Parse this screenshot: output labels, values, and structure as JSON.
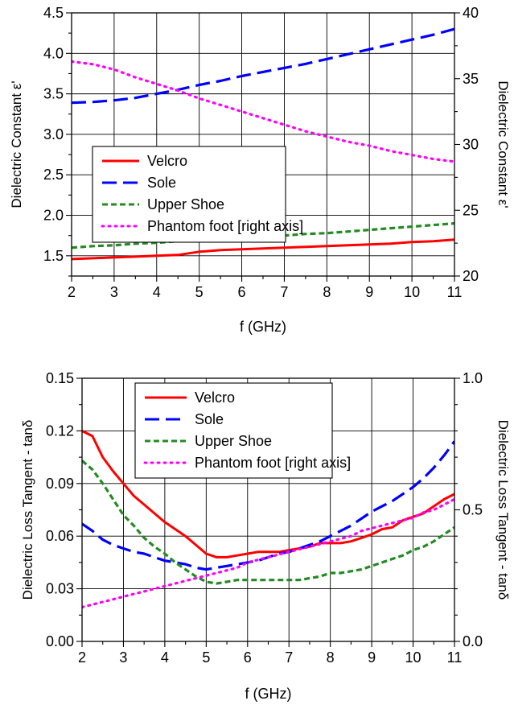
{
  "colors": {
    "velcro": "#ff0000",
    "sole": "#0000ff",
    "upper_shoe": "#228b22",
    "phantom": "#ff00ff"
  },
  "chart_data": [
    {
      "type": "line",
      "title": "",
      "xlabel": "f (GHz)",
      "ylabel": "Dielectric Constant ε'",
      "y2label": "Dielectric Constant ε'",
      "xlim": [
        2,
        11
      ],
      "ylim": [
        1.25,
        4.5
      ],
      "y2lim": [
        20,
        40
      ],
      "x_ticks": [
        "2",
        "3",
        "4",
        "5",
        "6",
        "7",
        "8",
        "9",
        "10",
        "11"
      ],
      "y_ticks": [
        "1.5",
        "2.0",
        "2.5",
        "3.0",
        "3.5",
        "4.0",
        "4.5"
      ],
      "y2_ticks": [
        "20",
        "25",
        "30",
        "35",
        "40"
      ],
      "grid": true,
      "legend_position": "middle-left",
      "x": [
        2,
        2.5,
        3,
        3.5,
        4,
        4.5,
        5,
        5.5,
        6,
        6.5,
        7,
        7.5,
        8,
        8.5,
        9,
        9.5,
        10,
        10.5,
        11
      ],
      "series": [
        {
          "name": "Velcro",
          "axis": "left",
          "style": "solid",
          "values": [
            1.46,
            1.47,
            1.48,
            1.49,
            1.5,
            1.51,
            1.55,
            1.57,
            1.58,
            1.59,
            1.6,
            1.61,
            1.62,
            1.63,
            1.64,
            1.65,
            1.67,
            1.68,
            1.7
          ]
        },
        {
          "name": "Sole",
          "axis": "left",
          "style": "dash",
          "values": [
            3.39,
            3.4,
            3.42,
            3.45,
            3.5,
            3.55,
            3.61,
            3.66,
            3.72,
            3.77,
            3.82,
            3.87,
            3.93,
            3.99,
            4.05,
            4.11,
            4.17,
            4.23,
            4.3
          ]
        },
        {
          "name": "Upper Shoe",
          "axis": "left",
          "style": "shortdash",
          "values": [
            1.6,
            1.62,
            1.63,
            1.65,
            1.66,
            1.68,
            1.7,
            1.71,
            1.72,
            1.74,
            1.75,
            1.77,
            1.78,
            1.8,
            1.82,
            1.84,
            1.86,
            1.88,
            1.9
          ]
        },
        {
          "name": "Phantom foot [right axis]",
          "axis": "right",
          "style": "dot",
          "values": [
            36.3,
            36.1,
            35.7,
            35.1,
            34.6,
            34.1,
            33.5,
            33.0,
            32.5,
            32.0,
            31.5,
            31.0,
            30.6,
            30.2,
            29.9,
            29.5,
            29.2,
            28.9,
            28.7
          ]
        }
      ]
    },
    {
      "type": "line",
      "title": "",
      "xlabel": "f (GHz)",
      "ylabel": "Dielectric Loss Tangent - tanδ",
      "y2label": "Dielectric Loss Tangent - tanδ",
      "xlim": [
        2,
        11
      ],
      "ylim": [
        0.0,
        0.15
      ],
      "y2lim": [
        0.0,
        1.0
      ],
      "x_ticks": [
        "2",
        "3",
        "4",
        "5",
        "6",
        "7",
        "8",
        "9",
        "10",
        "11"
      ],
      "y_ticks": [
        "0.00",
        "0.03",
        "0.06",
        "0.09",
        "0.12",
        "0.15"
      ],
      "y2_ticks": [
        "0.0",
        "0.5",
        "1.0"
      ],
      "grid": true,
      "legend_position": "top-center",
      "x": [
        2,
        2.25,
        2.5,
        2.75,
        3,
        3.25,
        3.5,
        3.75,
        4,
        4.25,
        4.5,
        4.75,
        5,
        5.25,
        5.5,
        5.75,
        6,
        6.25,
        6.5,
        6.75,
        7,
        7.25,
        7.5,
        7.75,
        8,
        8.25,
        8.5,
        8.75,
        9,
        9.25,
        9.5,
        9.75,
        10,
        10.25,
        10.5,
        10.75,
        11
      ],
      "series": [
        {
          "name": "Velcro",
          "axis": "left",
          "style": "solid",
          "values": [
            0.12,
            0.117,
            0.105,
            0.097,
            0.09,
            0.083,
            0.078,
            0.073,
            0.068,
            0.064,
            0.06,
            0.055,
            0.05,
            0.048,
            0.048,
            0.049,
            0.05,
            0.051,
            0.051,
            0.051,
            0.052,
            0.053,
            0.054,
            0.056,
            0.056,
            0.056,
            0.057,
            0.059,
            0.061,
            0.064,
            0.065,
            0.069,
            0.071,
            0.073,
            0.077,
            0.081,
            0.084
          ]
        },
        {
          "name": "Sole",
          "axis": "left",
          "style": "dash",
          "values": [
            0.067,
            0.063,
            0.058,
            0.055,
            0.053,
            0.051,
            0.05,
            0.048,
            0.046,
            0.045,
            0.044,
            0.042,
            0.041,
            0.042,
            0.043,
            0.044,
            0.045,
            0.046,
            0.048,
            0.05,
            0.051,
            0.053,
            0.055,
            0.057,
            0.06,
            0.063,
            0.066,
            0.07,
            0.074,
            0.077,
            0.08,
            0.084,
            0.088,
            0.093,
            0.099,
            0.106,
            0.114
          ]
        },
        {
          "name": "Upper Shoe",
          "axis": "left",
          "style": "shortdash",
          "values": [
            0.103,
            0.098,
            0.09,
            0.081,
            0.072,
            0.066,
            0.059,
            0.054,
            0.05,
            0.045,
            0.041,
            0.037,
            0.034,
            0.033,
            0.034,
            0.035,
            0.035,
            0.035,
            0.035,
            0.035,
            0.035,
            0.035,
            0.036,
            0.037,
            0.039,
            0.039,
            0.04,
            0.041,
            0.043,
            0.045,
            0.047,
            0.049,
            0.052,
            0.054,
            0.057,
            0.061,
            0.065
          ]
        },
        {
          "name": "Phantom foot [right axis]",
          "axis": "right",
          "style": "dot",
          "values": [
            0.13,
            0.14,
            0.15,
            0.16,
            0.17,
            0.18,
            0.19,
            0.2,
            0.21,
            0.22,
            0.23,
            0.24,
            0.25,
            0.26,
            0.27,
            0.28,
            0.3,
            0.31,
            0.32,
            0.33,
            0.34,
            0.35,
            0.36,
            0.37,
            0.38,
            0.39,
            0.4,
            0.42,
            0.43,
            0.44,
            0.45,
            0.46,
            0.47,
            0.49,
            0.5,
            0.52,
            0.54
          ]
        }
      ]
    }
  ]
}
